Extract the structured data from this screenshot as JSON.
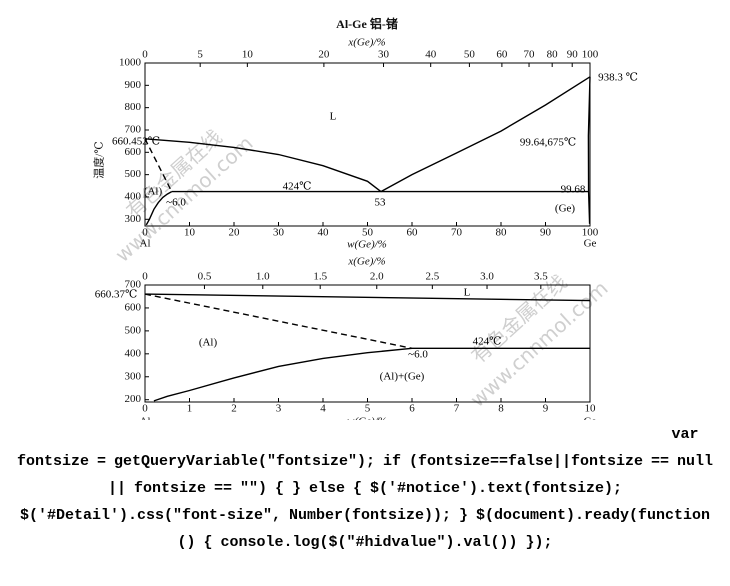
{
  "chart_data": [
    {
      "type": "line",
      "title": "Al-Ge  铝-锗",
      "x2label": "x(Ge)/%",
      "xlabel": "w(Ge)/%",
      "ylabel": "温度/℃",
      "x_end_labels": [
        "Al",
        "Ge"
      ],
      "xlim": [
        0,
        100
      ],
      "xticks": [
        0,
        10,
        20,
        30,
        40,
        50,
        60,
        70,
        80,
        90,
        100
      ],
      "x2ticks": [
        {
          "value": 0,
          "label": "0"
        },
        {
          "value": 12.4,
          "label": "5"
        },
        {
          "value": 23.0,
          "label": "10"
        },
        {
          "value": 40.2,
          "label": "20"
        },
        {
          "value": 53.6,
          "label": "30"
        },
        {
          "value": 64.2,
          "label": "40"
        },
        {
          "value": 72.9,
          "label": "50"
        },
        {
          "value": 80.2,
          "label": "60"
        },
        {
          "value": 86.3,
          "label": "70"
        },
        {
          "value": 91.5,
          "label": "80"
        },
        {
          "value": 96.0,
          "label": "90"
        },
        {
          "value": 100,
          "label": "100"
        }
      ],
      "ylim": [
        270,
        1000
      ],
      "yticks": [
        300,
        400,
        500,
        600,
        700,
        800,
        900,
        1000
      ],
      "series": [
        {
          "color": "#000000",
          "dash": false,
          "x": [
            0,
            10,
            20,
            30,
            40,
            50,
            53
          ],
          "values": [
            660.452,
            645,
            622,
            590,
            540,
            470,
            424
          ]
        },
        {
          "color": "#000000",
          "dash": false,
          "x": [
            53,
            60,
            70,
            80,
            90,
            100
          ],
          "values": [
            424,
            500,
            597,
            695,
            812,
            938.3
          ]
        },
        {
          "color": "#000000",
          "dash": true,
          "x": [
            0,
            6.0
          ],
          "values": [
            660.452,
            424
          ]
        },
        {
          "color": "#000000",
          "dash": false,
          "x": [
            0.3,
            1,
            2,
            3,
            4,
            5,
            6.0
          ],
          "values": [
            275,
            300,
            345,
            375,
            398,
            413,
            424
          ]
        },
        {
          "color": "#000000",
          "dash": false,
          "x": [
            6.0,
            99.68
          ],
          "values": [
            424,
            424
          ]
        },
        {
          "color": "#000000",
          "dash": false,
          "x": [
            100,
            99.64,
            99.68,
            99.9
          ],
          "values": [
            938.3,
            675,
            424,
            280
          ]
        }
      ],
      "annotations": [
        "660.452℃",
        "L",
        "424℃",
        "(Al)",
        "~6.0",
        "53",
        "99.64,675℃",
        "99.68",
        "(Ge)",
        "938.3 ℃"
      ]
    },
    {
      "type": "line",
      "x2label": "x(Ge)/%",
      "xlabel": "w(Ge)/%",
      "x_end_labels": [
        "Al",
        "Ge"
      ],
      "xlim": [
        0,
        10
      ],
      "xticks": [
        0,
        1,
        2,
        3,
        4,
        5,
        6,
        7,
        8,
        9,
        10
      ],
      "x2ticks": [
        {
          "value": 0,
          "label": "0"
        },
        {
          "value": 1.336,
          "label": "0.5"
        },
        {
          "value": 2.647,
          "label": "1.0"
        },
        {
          "value": 3.937,
          "label": "1.5"
        },
        {
          "value": 5.208,
          "label": "2.0"
        },
        {
          "value": 6.457,
          "label": "2.5"
        },
        {
          "value": 7.686,
          "label": "3.0"
        },
        {
          "value": 8.895,
          "label": "3.5"
        }
      ],
      "ylim": [
        190,
        700
      ],
      "yticks": [
        200,
        300,
        400,
        500,
        600,
        700
      ],
      "series": [
        {
          "color": "#000000",
          "dash": false,
          "x": [
            0,
            10
          ],
          "values": [
            660.37,
            632
          ]
        },
        {
          "color": "#000000",
          "dash": true,
          "x": [
            0,
            6.0
          ],
          "values": [
            660.37,
            424
          ]
        },
        {
          "color": "#000000",
          "dash": false,
          "x": [
            0.2,
            0.5,
            1,
            2,
            3,
            4,
            5,
            6.0
          ],
          "values": [
            195,
            215,
            240,
            295,
            345,
            380,
            405,
            424
          ]
        },
        {
          "color": "#000000",
          "dash": false,
          "x": [
            6.0,
            10
          ],
          "values": [
            424,
            424
          ]
        }
      ],
      "annotations": [
        "660.37℃",
        "L",
        "(Al)",
        "424℃",
        "~6.0",
        "(Al)+(Ge)"
      ]
    }
  ],
  "watermarks": [
    "有色金属在线",
    "www.cnnmol.com",
    "有色金属在线",
    "www.cnnmol.com"
  ],
  "code": "var fontsize = getQueryVariable(\"fontsize\"); if (fontsize==false||fontsize == null || fontsize == \"\") { } else { $('#notice').text(fontsize); $('#Detail').css(\"font-size\", Number(fontsize)); } $(document).ready(function () { console.log($(\"#hidvalue\").val()) });"
}
